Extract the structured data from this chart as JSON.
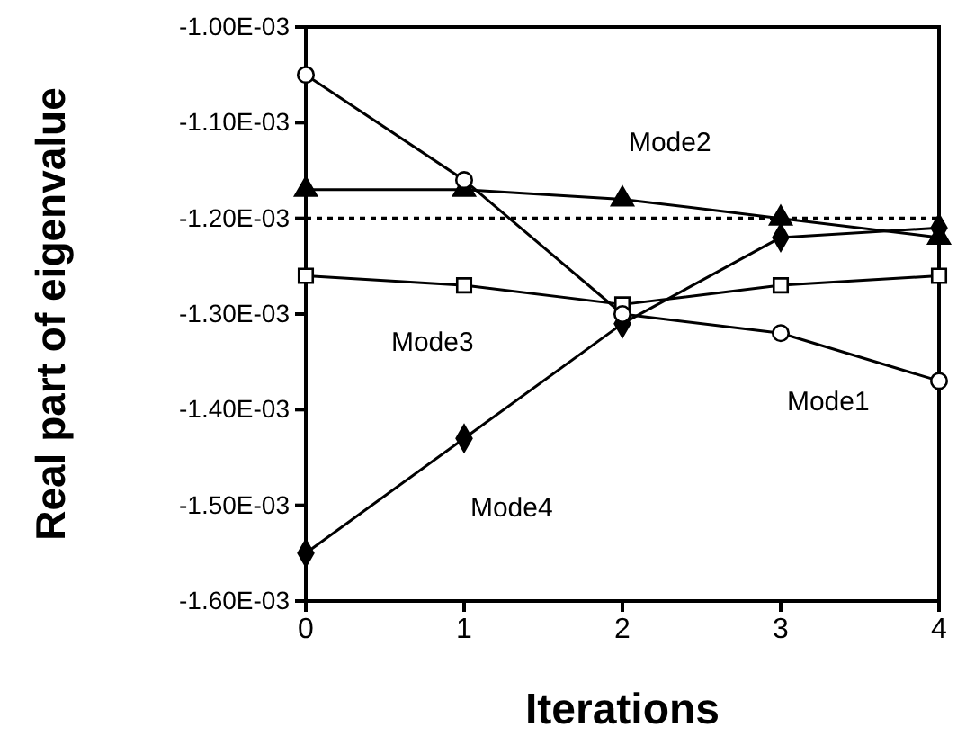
{
  "chart_data": {
    "type": "line",
    "xlabel": "Iterations",
    "ylabel": "Real part of eigenvalue",
    "x": [
      0,
      1,
      2,
      3,
      4
    ],
    "series": [
      {
        "name": "Mode1",
        "color": "#000000",
        "marker": "circle",
        "values": [
          -0.00105,
          -0.00116,
          -0.0013,
          -0.00132,
          -0.00137
        ]
      },
      {
        "name": "Mode2",
        "color": "#000000",
        "marker": "triangle",
        "values": [
          -0.00117,
          -0.00117,
          -0.00118,
          -0.0012,
          -0.00122
        ]
      },
      {
        "name": "Mode3",
        "color": "#000000",
        "marker": "square",
        "values": [
          -0.00126,
          -0.00127,
          -0.00129,
          -0.00127,
          -0.00126
        ]
      },
      {
        "name": "Mode4",
        "color": "#000000",
        "marker": "diamond",
        "values": [
          -0.00155,
          -0.00143,
          -0.00131,
          -0.00122,
          -0.00121
        ]
      }
    ],
    "xlim": [
      0,
      4
    ],
    "xticks": [
      0,
      1,
      2,
      3,
      4
    ],
    "ylim": [
      -0.0016,
      -0.001
    ],
    "yticks": [
      {
        "value": -0.0016,
        "label": "-1.60E-03"
      },
      {
        "value": -0.0015,
        "label": "-1.50E-03"
      },
      {
        "value": -0.0014,
        "label": "-1.40E-03"
      },
      {
        "value": -0.0013,
        "label": "-1.30E-03"
      },
      {
        "value": -0.0012,
        "label": "-1.20E-03"
      },
      {
        "value": -0.0011,
        "label": "-1.10E-03"
      },
      {
        "value": -0.001,
        "label": "-1.00E-03"
      }
    ],
    "ref_lines": [
      {
        "axis": "y",
        "value": -0.0012,
        "color": "#000000",
        "line_style": "dotted"
      }
    ],
    "grid": false,
    "line_style": "solid"
  }
}
